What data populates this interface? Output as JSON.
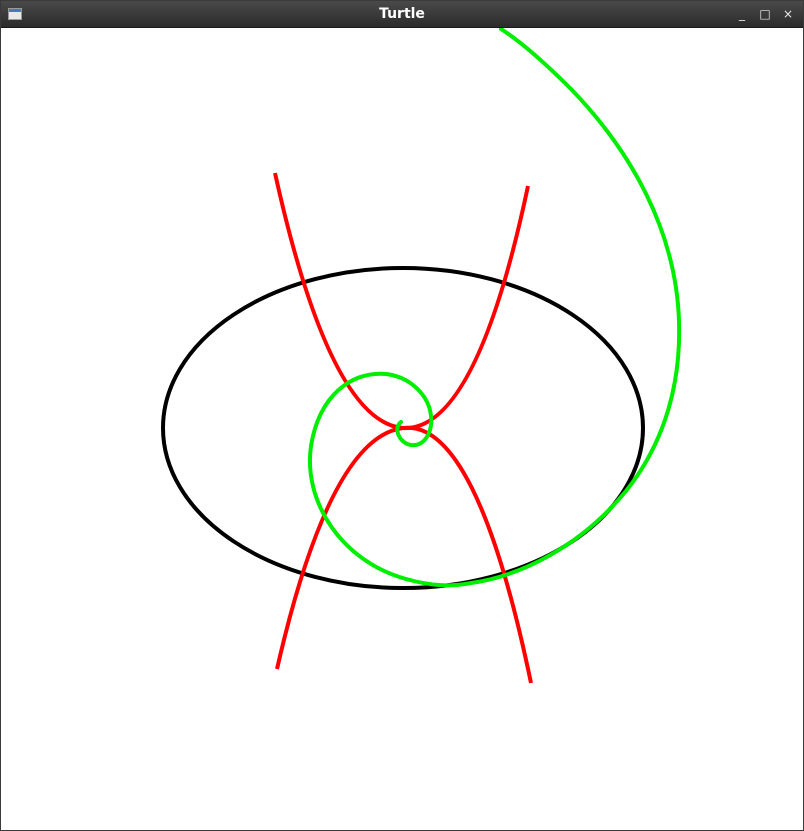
{
  "window": {
    "title": "Turtle",
    "minimize_glyph": "_",
    "maximize_glyph": "□",
    "close_glyph": "×",
    "app_icon": "window-icon"
  },
  "canvas": {
    "background": "#ffffff",
    "curves": [
      {
        "name": "ellipse",
        "color": "#000000"
      },
      {
        "name": "parabola-upper",
        "color": "#ff0000"
      },
      {
        "name": "parabola-lower",
        "color": "#ff0000"
      },
      {
        "name": "spiral",
        "color": "#00ee00"
      }
    ]
  }
}
